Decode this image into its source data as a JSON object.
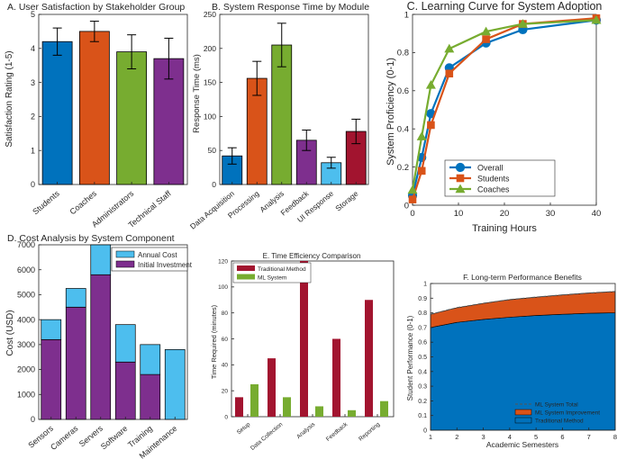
{
  "colors": {
    "blue": "#0072BD",
    "orange": "#D95319",
    "green": "#77AC30",
    "purple": "#7E2F8E",
    "lightblue": "#4DBEEE",
    "crimson": "#A2142F",
    "axis": "#262626",
    "dashed": "#555555"
  },
  "chart_data": [
    {
      "id": "A",
      "type": "bar",
      "title": "A. User Satisfaction by Stakeholder Group",
      "xlabel": "",
      "ylabel": "Satisfaction Rating (1-5)",
      "ylim": [
        0,
        5
      ],
      "yticks": [
        "0",
        "1",
        "2",
        "3",
        "4",
        "5"
      ],
      "categories": [
        "Students",
        "Coaches",
        "Administrators",
        "Technical Staff"
      ],
      "values": [
        4.2,
        4.5,
        3.9,
        3.7
      ],
      "errors": [
        0.4,
        0.3,
        0.5,
        0.6
      ],
      "bar_colors": [
        "blue",
        "orange",
        "green",
        "purple"
      ]
    },
    {
      "id": "B",
      "type": "bar",
      "title": "B. System Response Time by Module",
      "xlabel": "",
      "ylabel": "Response Time (ms)",
      "ylim": [
        0,
        250
      ],
      "yticks": [
        "0",
        "50",
        "100",
        "150",
        "200",
        "250"
      ],
      "categories": [
        "Data Acquisition",
        "Processing",
        "Analysis",
        "Feedback",
        "UI Response",
        "Storage"
      ],
      "values": [
        42,
        156,
        205,
        65,
        32,
        78
      ],
      "errors": [
        12,
        25,
        32,
        15,
        8,
        18
      ],
      "bar_colors": [
        "blue",
        "orange",
        "green",
        "purple",
        "lightblue",
        "crimson"
      ]
    },
    {
      "id": "C",
      "type": "line",
      "title": "C. Learning Curve for System Adoption",
      "xlabel": "Training Hours",
      "ylabel": "System Proficiency (0-1)",
      "xlim": [
        0,
        40
      ],
      "ylim": [
        0,
        1
      ],
      "xticks": [
        "0",
        "10",
        "20",
        "30",
        "40"
      ],
      "yticks": [
        "0",
        "0.2",
        "0.4",
        "0.6",
        "0.8",
        "1"
      ],
      "x": [
        0,
        2,
        4,
        8,
        16,
        24,
        40
      ],
      "series": [
        {
          "name": "Overall",
          "values": [
            0.05,
            0.25,
            0.48,
            0.72,
            0.85,
            0.92,
            0.97
          ],
          "color": "blue",
          "marker": "circle"
        },
        {
          "name": "Students",
          "values": [
            0.03,
            0.18,
            0.42,
            0.69,
            0.87,
            0.95,
            0.98
          ],
          "color": "orange",
          "marker": "square"
        },
        {
          "name": "Coaches",
          "values": [
            0.08,
            0.36,
            0.63,
            0.82,
            0.91,
            0.95,
            0.97
          ],
          "color": "green",
          "marker": "triangle"
        }
      ],
      "legend": "bottom-right"
    },
    {
      "id": "D",
      "type": "bar",
      "stacked": true,
      "title": "D. Cost Analysis by System Component",
      "xlabel": "",
      "ylabel": "Cost (USD)",
      "ylim": [
        0,
        7000
      ],
      "yticks": [
        "0",
        "1000",
        "2000",
        "3000",
        "4000",
        "5000",
        "6000",
        "7000"
      ],
      "categories": [
        "Sensors",
        "Cameras",
        "Servers",
        "Software",
        "Training",
        "Maintenance"
      ],
      "series": [
        {
          "name": "Initial Investment",
          "values": [
            3200,
            4500,
            5800,
            2300,
            1800,
            0
          ],
          "color": "purple"
        },
        {
          "name": "Annual Cost",
          "values": [
            800,
            750,
            1200,
            1500,
            1200,
            2800
          ],
          "color": "lightblue"
        }
      ],
      "legend_order": [
        "Annual Cost",
        "Initial Investment"
      ],
      "legend": "top-right"
    },
    {
      "id": "E",
      "type": "bar",
      "title": "E. Time Efficiency Comparison",
      "xlabel": "",
      "ylabel": "Time Required (minutes)",
      "ylim": [
        0,
        120
      ],
      "yticks": [
        "0",
        "20",
        "40",
        "60",
        "80",
        "100",
        "120"
      ],
      "categories": [
        "Setup",
        "Data Collection",
        "Analysis",
        "Feedback",
        "Reporting"
      ],
      "series": [
        {
          "name": "Traditional Method",
          "values": [
            15,
            45,
            120,
            60,
            90
          ],
          "color": "crimson"
        },
        {
          "name": "ML System",
          "values": [
            25,
            15,
            8,
            5,
            12
          ],
          "color": "green"
        }
      ],
      "legend": "top-left"
    },
    {
      "id": "F",
      "type": "area",
      "title": "F. Long-term Performance Benefits",
      "xlabel": "Academic Semesters",
      "ylabel": "Student Performance (0-1)",
      "xlim": [
        1,
        8
      ],
      "ylim": [
        0,
        1
      ],
      "xticks": [
        "1",
        "2",
        "3",
        "4",
        "5",
        "6",
        "7",
        "8"
      ],
      "yticks": [
        "0",
        "0.1",
        "0.2",
        "0.3",
        "0.4",
        "0.5",
        "0.6",
        "0.7",
        "0.8",
        "0.9",
        "1"
      ],
      "x": [
        1,
        2,
        3,
        4,
        5,
        6,
        7,
        8
      ],
      "series": [
        {
          "name": "Traditional Method",
          "values": [
            0.7,
            0.735,
            0.755,
            0.77,
            0.782,
            0.79,
            0.797,
            0.8
          ],
          "color": "blue"
        },
        {
          "name": "ML System Improvement",
          "values": [
            0.09,
            0.1,
            0.11,
            0.12,
            0.125,
            0.132,
            0.138,
            0.145
          ],
          "color": "orange"
        }
      ],
      "total_line": {
        "name": "ML System Total",
        "values": [
          0.79,
          0.835,
          0.865,
          0.89,
          0.907,
          0.922,
          0.935,
          0.945
        ],
        "color": "dashed"
      },
      "legend_order": [
        "ML System Total",
        "ML System Improvement",
        "Traditional Method"
      ],
      "legend": "bottom-right"
    }
  ]
}
